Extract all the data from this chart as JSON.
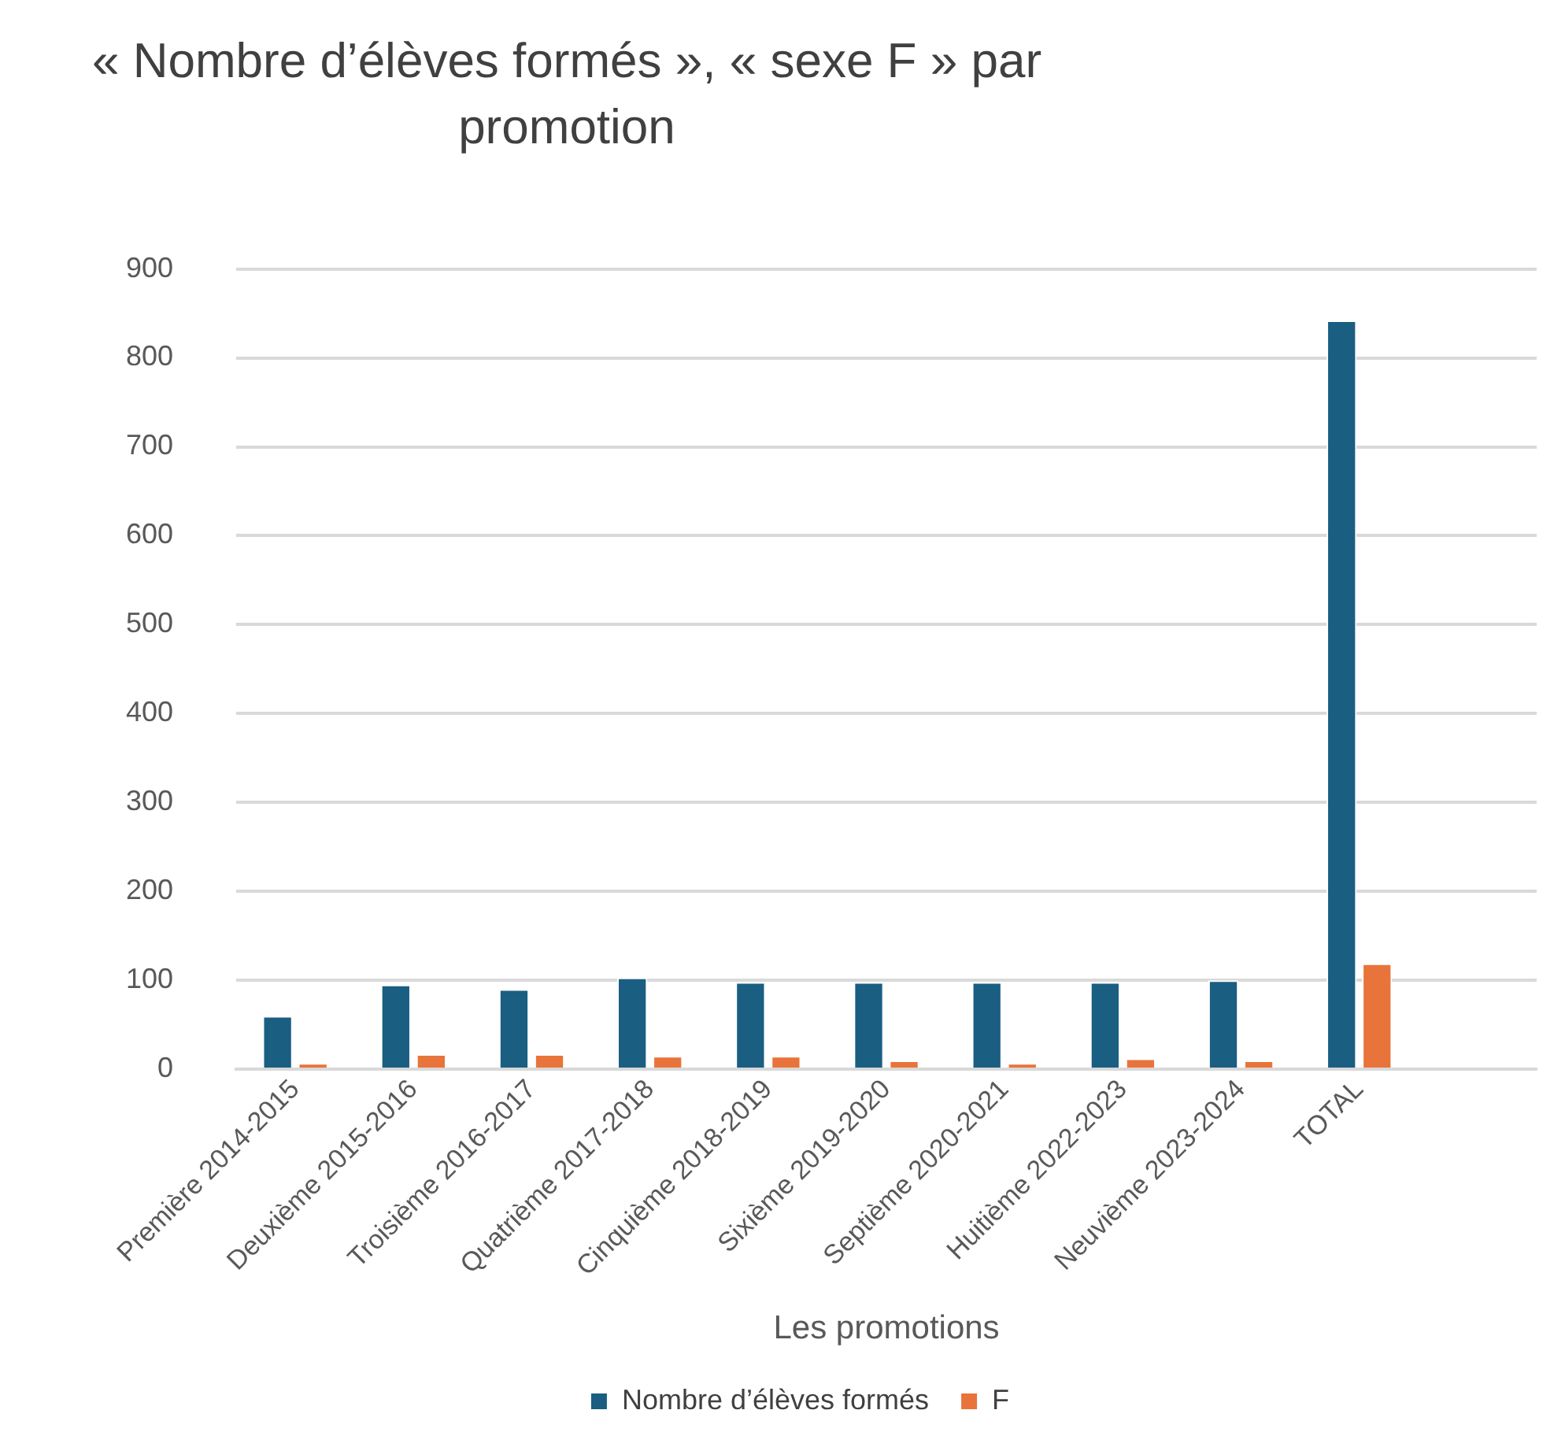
{
  "chart_data": {
    "type": "bar",
    "title": "« Nombre d’élèves formés », « sexe F » par promotion",
    "xlabel": "Les promotions",
    "categories": [
      "Première 2014-2015",
      "Deuxième 2015-2016",
      "Troisième 2016-2017",
      "Quatrième 2017-2018",
      "Cinquième 2018-2019",
      "Sixième 2019-2020",
      "Septième 2020-2021",
      "Huitième 2022-2023",
      "Neuvième 2023-2024",
      "TOTAL",
      null
    ],
    "series": [
      {
        "name": "Nombre d’élèves formés",
        "color": "#1a5e82",
        "values": [
          60,
          95,
          90,
          103,
          98,
          98,
          98,
          98,
          100,
          842,
          null
        ]
      },
      {
        "name": "F",
        "color": "#e8743b",
        "values": [
          7,
          17,
          17,
          15,
          15,
          10,
          7,
          12,
          10,
          119,
          null
        ]
      }
    ],
    "ylim": [
      0,
      900
    ],
    "yticks": [
      0,
      100,
      200,
      300,
      400,
      500,
      600,
      700,
      800,
      900
    ],
    "grid": "y",
    "legend": "bottom"
  }
}
